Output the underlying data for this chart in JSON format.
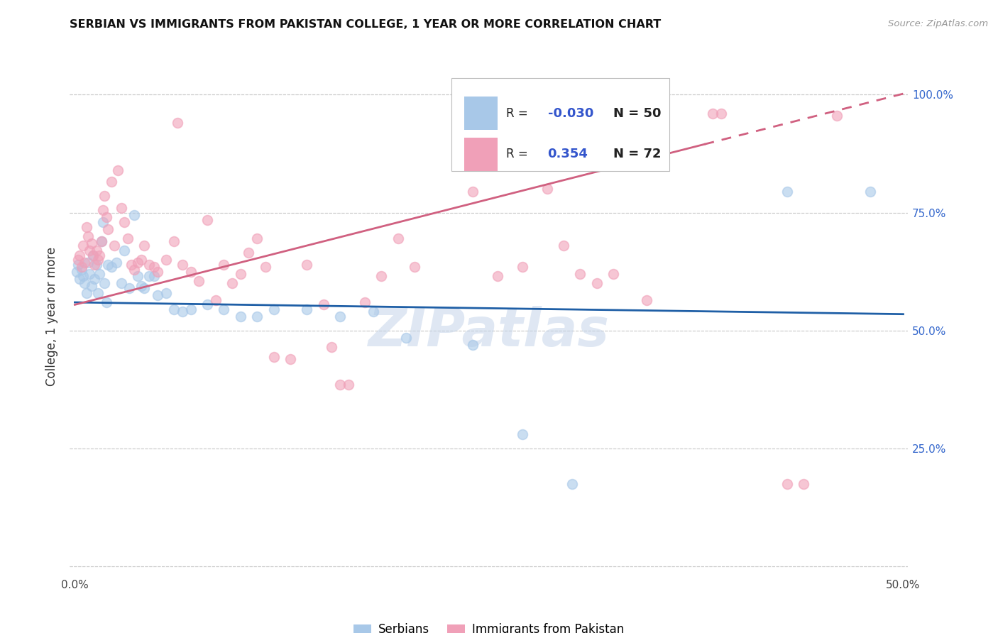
{
  "title": "SERBIAN VS IMMIGRANTS FROM PAKISTAN COLLEGE, 1 YEAR OR MORE CORRELATION CHART",
  "source": "Source: ZipAtlas.com",
  "ylabel": "College, 1 year or more",
  "xlim": [
    -0.003,
    0.503
  ],
  "ylim": [
    -0.02,
    1.08
  ],
  "xticks": [
    0.0,
    0.1,
    0.2,
    0.3,
    0.4,
    0.5
  ],
  "xtick_labels": [
    "0.0%",
    "",
    "",
    "",
    "",
    "50.0%"
  ],
  "ytick_positions": [
    0.0,
    0.25,
    0.5,
    0.75,
    1.0
  ],
  "ytick_labels_right": [
    "",
    "25.0%",
    "50.0%",
    "75.0%",
    "100.0%"
  ],
  "legend_r_serbian": "-0.030",
  "legend_n_serbian": "50",
  "legend_r_pakistan": "0.354",
  "legend_n_pakistan": "72",
  "serbian_color": "#A8C8E8",
  "pakistan_color": "#F0A0B8",
  "serbian_line_color": "#1F5FA6",
  "pakistan_line_color": "#D06080",
  "watermark_text": "ZIPatlas",
  "serbian_points": [
    [
      0.001,
      0.625
    ],
    [
      0.002,
      0.64
    ],
    [
      0.003,
      0.61
    ],
    [
      0.004,
      0.63
    ],
    [
      0.005,
      0.615
    ],
    [
      0.006,
      0.6
    ],
    [
      0.007,
      0.58
    ],
    [
      0.008,
      0.645
    ],
    [
      0.009,
      0.62
    ],
    [
      0.01,
      0.595
    ],
    [
      0.011,
      0.66
    ],
    [
      0.012,
      0.61
    ],
    [
      0.013,
      0.64
    ],
    [
      0.014,
      0.58
    ],
    [
      0.015,
      0.62
    ],
    [
      0.016,
      0.69
    ],
    [
      0.017,
      0.73
    ],
    [
      0.018,
      0.6
    ],
    [
      0.019,
      0.56
    ],
    [
      0.02,
      0.64
    ],
    [
      0.022,
      0.635
    ],
    [
      0.025,
      0.645
    ],
    [
      0.028,
      0.6
    ],
    [
      0.03,
      0.67
    ],
    [
      0.033,
      0.59
    ],
    [
      0.036,
      0.745
    ],
    [
      0.038,
      0.615
    ],
    [
      0.04,
      0.595
    ],
    [
      0.042,
      0.59
    ],
    [
      0.045,
      0.615
    ],
    [
      0.048,
      0.615
    ],
    [
      0.05,
      0.575
    ],
    [
      0.055,
      0.58
    ],
    [
      0.06,
      0.545
    ],
    [
      0.065,
      0.54
    ],
    [
      0.07,
      0.545
    ],
    [
      0.08,
      0.555
    ],
    [
      0.09,
      0.545
    ],
    [
      0.1,
      0.53
    ],
    [
      0.11,
      0.53
    ],
    [
      0.12,
      0.545
    ],
    [
      0.14,
      0.545
    ],
    [
      0.16,
      0.53
    ],
    [
      0.18,
      0.54
    ],
    [
      0.2,
      0.485
    ],
    [
      0.24,
      0.47
    ],
    [
      0.27,
      0.28
    ],
    [
      0.3,
      0.175
    ],
    [
      0.43,
      0.795
    ],
    [
      0.48,
      0.795
    ]
  ],
  "pakistan_points": [
    [
      0.002,
      0.65
    ],
    [
      0.003,
      0.66
    ],
    [
      0.004,
      0.635
    ],
    [
      0.005,
      0.68
    ],
    [
      0.006,
      0.645
    ],
    [
      0.007,
      0.72
    ],
    [
      0.008,
      0.7
    ],
    [
      0.009,
      0.67
    ],
    [
      0.01,
      0.685
    ],
    [
      0.011,
      0.66
    ],
    [
      0.012,
      0.64
    ],
    [
      0.013,
      0.67
    ],
    [
      0.014,
      0.65
    ],
    [
      0.015,
      0.66
    ],
    [
      0.016,
      0.69
    ],
    [
      0.017,
      0.755
    ],
    [
      0.018,
      0.785
    ],
    [
      0.019,
      0.74
    ],
    [
      0.02,
      0.715
    ],
    [
      0.022,
      0.815
    ],
    [
      0.024,
      0.68
    ],
    [
      0.026,
      0.84
    ],
    [
      0.028,
      0.76
    ],
    [
      0.03,
      0.73
    ],
    [
      0.032,
      0.695
    ],
    [
      0.034,
      0.64
    ],
    [
      0.036,
      0.63
    ],
    [
      0.038,
      0.645
    ],
    [
      0.04,
      0.65
    ],
    [
      0.042,
      0.68
    ],
    [
      0.045,
      0.64
    ],
    [
      0.048,
      0.635
    ],
    [
      0.05,
      0.625
    ],
    [
      0.055,
      0.65
    ],
    [
      0.06,
      0.69
    ],
    [
      0.062,
      0.94
    ],
    [
      0.065,
      0.64
    ],
    [
      0.07,
      0.625
    ],
    [
      0.075,
      0.605
    ],
    [
      0.08,
      0.735
    ],
    [
      0.085,
      0.565
    ],
    [
      0.09,
      0.64
    ],
    [
      0.095,
      0.6
    ],
    [
      0.1,
      0.62
    ],
    [
      0.105,
      0.665
    ],
    [
      0.11,
      0.695
    ],
    [
      0.115,
      0.635
    ],
    [
      0.12,
      0.445
    ],
    [
      0.13,
      0.44
    ],
    [
      0.14,
      0.64
    ],
    [
      0.15,
      0.555
    ],
    [
      0.155,
      0.465
    ],
    [
      0.16,
      0.385
    ],
    [
      0.165,
      0.385
    ],
    [
      0.175,
      0.56
    ],
    [
      0.185,
      0.615
    ],
    [
      0.195,
      0.695
    ],
    [
      0.205,
      0.635
    ],
    [
      0.24,
      0.795
    ],
    [
      0.255,
      0.615
    ],
    [
      0.27,
      0.635
    ],
    [
      0.285,
      0.8
    ],
    [
      0.295,
      0.68
    ],
    [
      0.305,
      0.62
    ],
    [
      0.315,
      0.6
    ],
    [
      0.325,
      0.62
    ],
    [
      0.345,
      0.565
    ],
    [
      0.385,
      0.96
    ],
    [
      0.43,
      0.175
    ],
    [
      0.44,
      0.175
    ],
    [
      0.46,
      0.955
    ],
    [
      0.39,
      0.96
    ]
  ],
  "serbian_trend": [
    0.0,
    0.5,
    0.56,
    0.535
  ],
  "pakistan_solid_trend": [
    0.0,
    0.38,
    0.555,
    0.895
  ],
  "pakistan_dash_trend": [
    0.38,
    0.52,
    0.895,
    1.02
  ]
}
